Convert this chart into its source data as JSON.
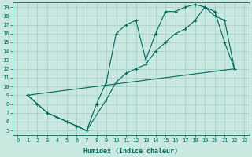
{
  "xlabel": "Humidex (Indice chaleur)",
  "background_color": "#c8e8e0",
  "grid_color": "#a8d0cc",
  "line_color": "#006860",
  "xlim": [
    -0.5,
    23.5
  ],
  "ylim": [
    4.5,
    19.5
  ],
  "xticks": [
    0,
    1,
    2,
    3,
    4,
    5,
    6,
    7,
    8,
    9,
    10,
    11,
    12,
    13,
    14,
    15,
    16,
    17,
    18,
    19,
    20,
    21,
    22,
    23
  ],
  "yticks": [
    5,
    6,
    7,
    8,
    9,
    10,
    11,
    12,
    13,
    14,
    15,
    16,
    17,
    18,
    19
  ],
  "line1_x": [
    1,
    2,
    3,
    4,
    5,
    6,
    7,
    8,
    9,
    10,
    11,
    12,
    13,
    14,
    15,
    16,
    17,
    18,
    19,
    20,
    21,
    22
  ],
  "line1_y": [
    9.0,
    8.0,
    7.0,
    6.5,
    6.0,
    5.5,
    5.0,
    8.0,
    10.5,
    16.0,
    17.0,
    17.5,
    13.0,
    16.0,
    18.5,
    18.5,
    19.0,
    19.3,
    19.0,
    18.5,
    15.0,
    12.0
  ],
  "line2_x": [
    1,
    3,
    4,
    5,
    6,
    7,
    9,
    10,
    11,
    12,
    13,
    14,
    15,
    16,
    17,
    18,
    19,
    20,
    21,
    22
  ],
  "line2_y": [
    9.0,
    7.0,
    6.5,
    6.0,
    5.5,
    5.0,
    8.5,
    10.5,
    11.5,
    12.0,
    12.5,
    14.0,
    15.0,
    16.0,
    16.5,
    17.5,
    19.0,
    18.0,
    17.5,
    12.0
  ],
  "line3_x": [
    1,
    22
  ],
  "line3_y": [
    9.0,
    12.0
  ]
}
